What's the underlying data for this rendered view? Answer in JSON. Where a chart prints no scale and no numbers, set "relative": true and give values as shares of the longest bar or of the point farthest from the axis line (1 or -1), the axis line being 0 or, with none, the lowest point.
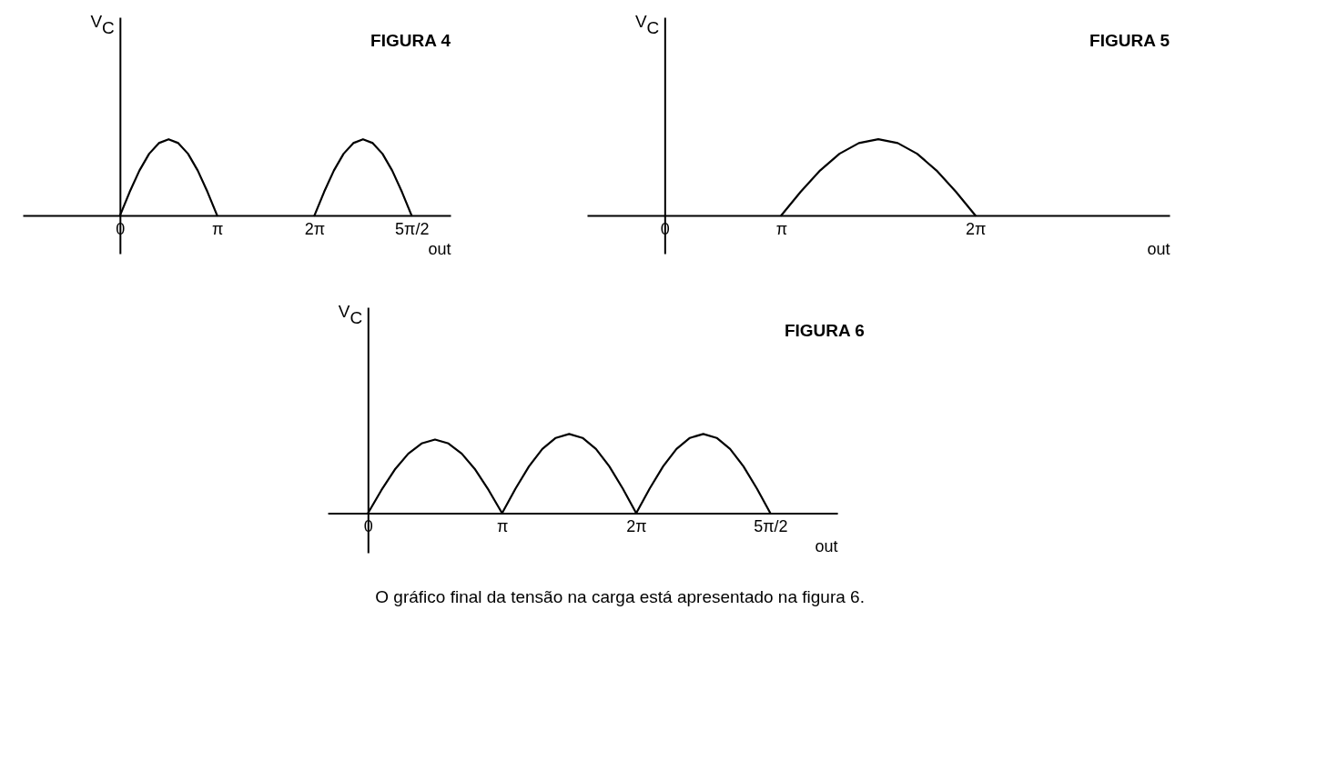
{
  "chart_data": [
    {
      "type": "line",
      "title": "FIGURA 4",
      "xlabel": "out",
      "ylabel": "V$_{C}$",
      "relative": true,
      "categories": [
        null,
        null,
        null,
        null,
        null,
        null,
        null,
        null,
        null,
        null,
        "0",
        null,
        null,
        null,
        null,
        null,
        null,
        null,
        null,
        null,
        "π",
        null,
        null,
        null,
        null,
        null,
        null,
        null,
        null,
        null,
        "2π",
        null,
        null,
        null,
        null,
        null,
        null,
        null,
        null,
        null,
        "5π/2",
        null,
        null,
        null,
        null
      ],
      "series": [
        {
          "color": "#000000",
          "values": [
            null,
            null,
            null,
            null,
            null,
            null,
            null,
            null,
            null,
            null,
            0,
            0.31,
            0.59,
            0.81,
            0.95,
            1,
            0.95,
            0.81,
            0.59,
            0.31,
            0,
            null,
            null,
            null,
            null,
            null,
            null,
            null,
            null,
            null,
            0,
            0.31,
            0.59,
            0.81,
            0.95,
            1,
            0.95,
            0.81,
            0.59,
            0.31,
            0,
            null,
            null,
            null,
            null
          ]
        }
      ]
    },
    {
      "type": "line",
      "title": "FIGURA 5",
      "xlabel": "out",
      "ylabel": "V$_{C}$",
      "relative": true,
      "categories": [
        null,
        null,
        null,
        null,
        "0",
        null,
        null,
        null,
        null,
        null,
        "π",
        null,
        null,
        null,
        null,
        null,
        null,
        null,
        null,
        null,
        "2π",
        null,
        null,
        null,
        null,
        null,
        null,
        null,
        null,
        null,
        null
      ],
      "series": [
        {
          "color": "#000000",
          "values": [
            null,
            null,
            null,
            null,
            null,
            null,
            null,
            null,
            null,
            null,
            0,
            0.31,
            0.59,
            0.81,
            0.95,
            1,
            0.95,
            0.81,
            0.59,
            0.31,
            0,
            null,
            null,
            null,
            null,
            null,
            null,
            null,
            null,
            null,
            null
          ]
        }
      ]
    },
    {
      "type": "line",
      "title": "FIGURA 6",
      "xlabel": "out",
      "ylabel": "V$_{C}$",
      "relative": true,
      "categories": [
        null,
        null,
        null,
        "0",
        null,
        null,
        null,
        null,
        null,
        null,
        null,
        null,
        null,
        "π",
        null,
        null,
        null,
        null,
        null,
        null,
        null,
        null,
        null,
        "2π",
        null,
        null,
        null,
        null,
        null,
        null,
        null,
        null,
        null,
        "5π/2",
        null,
        null,
        null,
        null,
        null
      ],
      "annotations": [
        "O gráfico final da tensão na carga está apresentado na figura 6."
      ],
      "series": [
        {
          "color": "#000000",
          "values": [
            null,
            null,
            null,
            0,
            0.29,
            0.55,
            0.75,
            0.88,
            0.93,
            0.88,
            0.75,
            0.55,
            0.29,
            0,
            0.31,
            0.59,
            0.81,
            0.95,
            1,
            0.95,
            0.81,
            0.59,
            0.31,
            0,
            0.31,
            0.59,
            0.81,
            0.95,
            1,
            0.95,
            0.81,
            0.59,
            0.31,
            0,
            null,
            null,
            null,
            null,
            null
          ]
        }
      ]
    }
  ]
}
